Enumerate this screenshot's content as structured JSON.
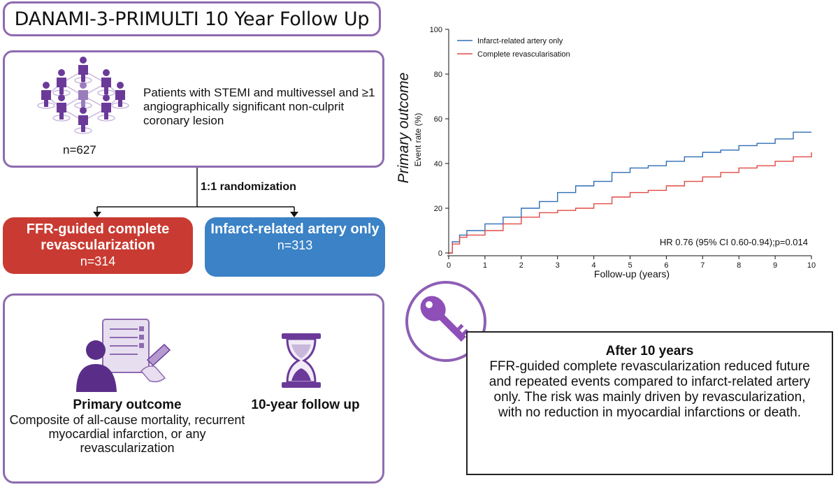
{
  "title": "DANAMI-3-PRIMULTI 10 Year Follow Up",
  "population": {
    "description": "Patients with STEMI and multivessel and ≥1 angiographically significant non-culprit coronary lesion",
    "n": "n=627"
  },
  "randomization": "1:1 randomization",
  "arms": [
    {
      "label": "FFR-guided complete revascularization",
      "n": "n=314",
      "color": "#c93b32"
    },
    {
      "label": "Infarct-related artery only",
      "n": "n=313",
      "color": "#3b82c6"
    }
  ],
  "outcome": {
    "title": "Primary outcome",
    "description": "Composite of all-cause mortality, recurrent myocardial infarction, or any revascularization",
    "followup": "10-year follow up"
  },
  "conclusion": {
    "title": "After 10 years",
    "body": "FFR-guided complete revascularization reduced future and repeated events compared to infarct-related artery only. The risk was mainly driven by revascularization, with no reduction in myocardial infarctions or death."
  },
  "chart_data": {
    "type": "line",
    "side_title": "Primary outcome",
    "ylabel": "Event rate (%)",
    "xlabel": "Follow-up (years)",
    "xlim": [
      0,
      10
    ],
    "ylim": [
      0,
      100
    ],
    "xticks": [
      0,
      1,
      2,
      3,
      4,
      5,
      6,
      7,
      8,
      9,
      10
    ],
    "yticks": [
      0,
      20,
      40,
      60,
      80,
      100
    ],
    "annotation": "HR 0.76 (95% CI 0.60-0.94);p=0.014",
    "series": [
      {
        "name": "Infarct-related artery only",
        "color": "#2f6db5",
        "x": [
          0,
          0.1,
          0.3,
          0.5,
          1,
          1.5,
          2,
          2.5,
          3,
          3.5,
          4,
          4.5,
          5,
          5.5,
          6,
          6.5,
          7,
          7.5,
          8,
          8.5,
          9,
          9.5,
          10
        ],
        "y": [
          0,
          5,
          8,
          10,
          13,
          16,
          20,
          23,
          27,
          30,
          32,
          36,
          38,
          39,
          41,
          43,
          45,
          46,
          48,
          49,
          51,
          54,
          54
        ]
      },
      {
        "name": "Complete revascularisation",
        "color": "#e04a44",
        "x": [
          0,
          0.1,
          0.3,
          0.5,
          1,
          1.5,
          2,
          2.5,
          3,
          3.5,
          4,
          4.5,
          5,
          5.5,
          6,
          6.5,
          7,
          7.5,
          8,
          8.5,
          9,
          9.5,
          10
        ],
        "y": [
          0,
          4,
          7,
          8,
          10,
          13,
          16,
          18,
          19,
          20,
          22,
          25,
          27,
          28,
          30,
          32,
          34,
          36,
          38,
          39,
          41,
          43,
          45
        ]
      }
    ]
  }
}
